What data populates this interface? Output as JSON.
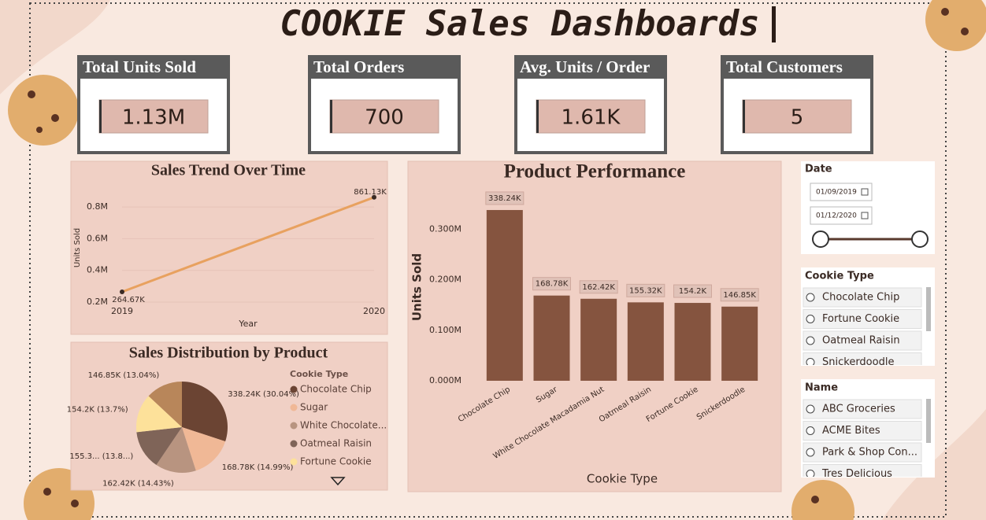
{
  "title": "COOKIE Sales Dashboards",
  "kpis": [
    {
      "label": "Total Units Sold",
      "value": "1.13M"
    },
    {
      "label": "Total Orders",
      "value": "700"
    },
    {
      "label": "Avg. Units / Order",
      "value": "1.61K"
    },
    {
      "label": "Total Customers",
      "value": "5"
    }
  ],
  "chart_data": [
    {
      "type": "line",
      "title": "Sales Trend Over Time",
      "x_label": "Year",
      "y_label": "Units Sold",
      "x": [
        2019,
        2020
      ],
      "xlim": [
        2019,
        2020
      ],
      "xticks": [
        2019,
        2020
      ],
      "values": [
        264670,
        861130
      ],
      "value_labels": [
        "264.67K",
        "861.13K"
      ],
      "color": "#e8a15f",
      "ylim": [
        200000,
        870000
      ],
      "yticks": [
        {
          "value": 200000,
          "label": "0.2M"
        },
        {
          "value": 400000,
          "label": "0.4M"
        },
        {
          "value": 600000,
          "label": "0.6M"
        },
        {
          "value": 800000,
          "label": "0.8M"
        }
      ],
      "grid": true
    },
    {
      "type": "pie",
      "title": "Sales Distribution by Product",
      "values": [
        338240,
        168780,
        162420,
        155320,
        154200,
        146850
      ],
      "value_labels": [
        "338.24K (30.04%)",
        "168.78K (14.99%)",
        "162.42K (14.43%)",
        "155.3... (13.8...)",
        "154.2K (13.7%)",
        "146.85K (13.04%)"
      ],
      "colors": [
        "#6b4433",
        "#f0b896",
        "#b89480",
        "#7f6458",
        "#fde19a",
        "#b8865a"
      ],
      "legend_title": "Cookie Type",
      "legend": [
        "Chocolate Chip",
        "Sugar",
        "White Chocolate...",
        "Oatmeal Raisin",
        "Fortune Cookie"
      ]
    },
    {
      "type": "bar",
      "title": "Product Performance",
      "x_label": "Cookie Type",
      "y_label": "Units Sold",
      "categories": [
        "Chocolate Chip",
        "Sugar",
        "White Chocolate Macadamia Nut",
        "Oatmeal Raisin",
        "Fortune Cookie",
        "Snickerdoodle"
      ],
      "values": [
        338240,
        168780,
        162420,
        155320,
        154200,
        146850
      ],
      "value_labels": [
        "338.24K",
        "168.78K",
        "162.42K",
        "155.32K",
        "154.2K",
        "146.85K"
      ],
      "color": "#85543f",
      "ylim": [
        0,
        360000
      ],
      "yticks": [
        {
          "value": 0,
          "label": "0.000M"
        },
        {
          "value": 100000,
          "label": "0.100M"
        },
        {
          "value": 200000,
          "label": "0.200M"
        },
        {
          "value": 300000,
          "label": "0.300M"
        }
      ]
    }
  ],
  "slicers": {
    "date": {
      "label": "Date",
      "from": "01/09/2019",
      "to": "01/12/2020"
    },
    "cookie_type": {
      "label": "Cookie Type",
      "items": [
        "Chocolate Chip",
        "Fortune Cookie",
        "Oatmeal Raisin",
        "Snickerdoodle"
      ]
    },
    "name": {
      "label": "Name",
      "items": [
        "ABC Groceries",
        "ACME Bites",
        "Park & Shop Con...",
        "Tres Delicious"
      ]
    }
  }
}
